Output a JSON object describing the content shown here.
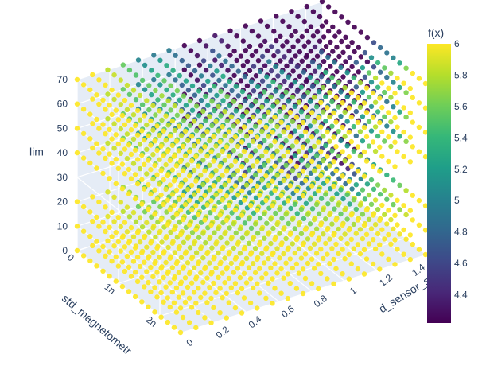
{
  "chart_data": {
    "type": "scatter3d",
    "colorscale": "Viridis",
    "colorbar": {
      "title": "f(x)",
      "range": [
        4.22,
        6.0
      ],
      "ticks": [
        "4.4",
        "4.6",
        "4.8",
        "5",
        "5.2",
        "5.4",
        "5.6",
        "5.8",
        "6"
      ],
      "tick_values": [
        4.4,
        4.6,
        4.8,
        5.0,
        5.2,
        5.4,
        5.6,
        5.8,
        6.0
      ]
    },
    "axes": {
      "x": {
        "label": "std_sensor_sol",
        "shown_label": "d_sensor_sol",
        "range": [
          0,
          1.5
        ],
        "ticks": [
          "0",
          "0.2",
          "0.4",
          "0.6",
          "0.8",
          "1",
          "1.2",
          "1.4"
        ],
        "tick_values": [
          0,
          0.2,
          0.4,
          0.6,
          0.8,
          1.0,
          1.2,
          1.4
        ]
      },
      "y": {
        "label": "std_magnetometer",
        "shown_label": "std_magnetometr",
        "range": [
          0,
          2.5e-09
        ],
        "ticks": [
          "0",
          "1n",
          "2n"
        ],
        "tick_values": [
          0,
          1e-09,
          2e-09
        ]
      },
      "z": {
        "label": "lim",
        "range": [
          0,
          70
        ],
        "ticks": [
          "0",
          "10",
          "20",
          "30",
          "40",
          "50",
          "60",
          "70"
        ],
        "tick_values": [
          0,
          10,
          20,
          30,
          40,
          50,
          60,
          70
        ]
      }
    },
    "layers_lim": [
      0,
      10,
      20,
      40,
      50,
      60,
      70
    ],
    "grid": {
      "x_steps": 16,
      "y_steps": 16
    },
    "color_model": "f is near 6 for small std_sensor_sol and decreases toward ~4.2 for larger std_sensor_sol and smaller std_magnetometer; the drop is strongest on upper lim layers",
    "grid_lines": true
  }
}
